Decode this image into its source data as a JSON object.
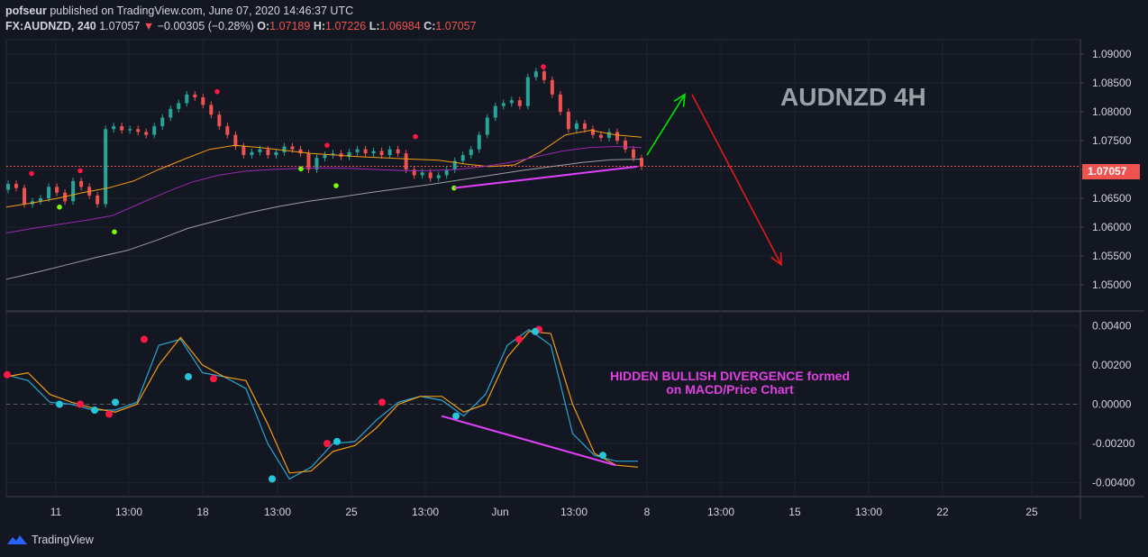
{
  "header": {
    "author": "pofseur",
    "published": "published on TradingView.com, June 07, 2020 14:46:37 UTC",
    "symbol": "FX:AUDNZD, 240",
    "last": "1.07057",
    "change": "−0.00305 (−0.28%)",
    "o_label": "O:",
    "o": "1.07189",
    "h_label": "H:",
    "h": "1.07226",
    "l_label": "L:",
    "l": "1.06984",
    "c_label": "C:",
    "c": "1.07057"
  },
  "watermark": "AUDNZD 4H",
  "note": {
    "line1": "HIDDEN BULLISH DIVERGENCE formed",
    "line2": "on MACD/Price Chart"
  },
  "footer": {
    "brand": "TradingView"
  },
  "colors": {
    "bg": "#131722",
    "up": "#26a69a",
    "down": "#ef5350",
    "ma_fast": "#f39c12",
    "ma_mid": "#9c27b0",
    "ma_slow": "#9e9e9e",
    "macd": "#26a6d1",
    "signal": "#f39c12",
    "divergence": "#e040fb"
  },
  "chart_data": [
    {
      "type": "line",
      "panel": "price",
      "y_ticks": [
        "1.09000",
        "1.08500",
        "1.08000",
        "1.07500",
        "1.07000",
        "1.06500",
        "1.06000",
        "1.05500",
        "1.05000"
      ],
      "ylim": [
        1.0455,
        1.0925
      ],
      "last_price": "1.07057",
      "x_ticks": [
        "11",
        "13:00",
        "18",
        "13:00",
        "25",
        "13:00",
        "Jun",
        "13:00",
        "8",
        "13:00",
        "15",
        "13:00",
        "22",
        "25"
      ],
      "series": [
        {
          "values": [
            1.0635,
            1.0642,
            1.065,
            1.066,
            1.0668,
            1.068,
            1.07,
            1.0718,
            1.0735,
            1.0742,
            1.0738,
            1.0733,
            1.0728,
            1.0725,
            1.0722,
            1.072,
            1.0718,
            1.0716,
            1.071,
            1.0705,
            1.0708,
            1.073,
            1.076,
            1.0768,
            1.076,
            1.0756
          ]
        },
        {
          "values": [
            1.059,
            1.0598,
            1.0605,
            1.0612,
            1.062,
            1.064,
            1.066,
            1.0678,
            1.069,
            1.0697,
            1.07,
            1.0702,
            1.0703,
            1.0702,
            1.07,
            1.0698,
            1.0698,
            1.07,
            1.0705,
            1.0712,
            1.0722,
            1.0732,
            1.0738,
            1.074,
            1.0738
          ]
        },
        {
          "values": [
            1.051,
            1.0522,
            1.0535,
            1.0548,
            1.056,
            1.0578,
            1.0598,
            1.0612,
            1.0625,
            1.0636,
            1.0645,
            1.0652,
            1.066,
            1.0667,
            1.0674,
            1.0682,
            1.069,
            1.0698,
            1.0705,
            1.0712,
            1.0717,
            1.0718
          ]
        }
      ],
      "arrows": [
        {
          "color": "green",
          "from": 1.0725,
          "to": 1.083
        },
        {
          "color": "red",
          "from": 1.083,
          "to": 1.0535
        }
      ]
    },
    {
      "type": "line",
      "panel": "macd",
      "y_ticks": [
        "0.00400",
        "0.00200",
        "0.00000",
        "-0.00200",
        "-0.00400"
      ],
      "ylim": [
        -0.0047,
        0.0047
      ],
      "series": [
        {
          "values": [
            0.0015,
            0.0012,
            0.0001,
            0.0,
            -0.0003,
            -0.0003,
            0.0001,
            0.003,
            0.0033,
            0.0016,
            0.0014,
            0.0008,
            -0.002,
            -0.0038,
            -0.0032,
            -0.002,
            -0.0019,
            -0.0008,
            0.0001,
            0.0004,
            0.0002,
            -0.0006,
            0.0005,
            0.003,
            0.0038,
            0.003,
            -0.0015,
            -0.0026,
            -0.0029,
            -0.0029
          ]
        },
        {
          "values": [
            0.0014,
            0.0016,
            0.0005,
            0.0001,
            -0.0002,
            -0.0004,
            0.0,
            0.002,
            0.0034,
            0.002,
            0.0014,
            0.0012,
            -0.001,
            -0.0035,
            -0.0034,
            -0.0024,
            -0.0021,
            -0.0012,
            0.0,
            0.0004,
            0.0004,
            -0.0004,
            0.0,
            0.0024,
            0.0037,
            0.0036,
            0.0,
            -0.0025,
            -0.0031,
            -0.0032
          ]
        }
      ]
    }
  ]
}
